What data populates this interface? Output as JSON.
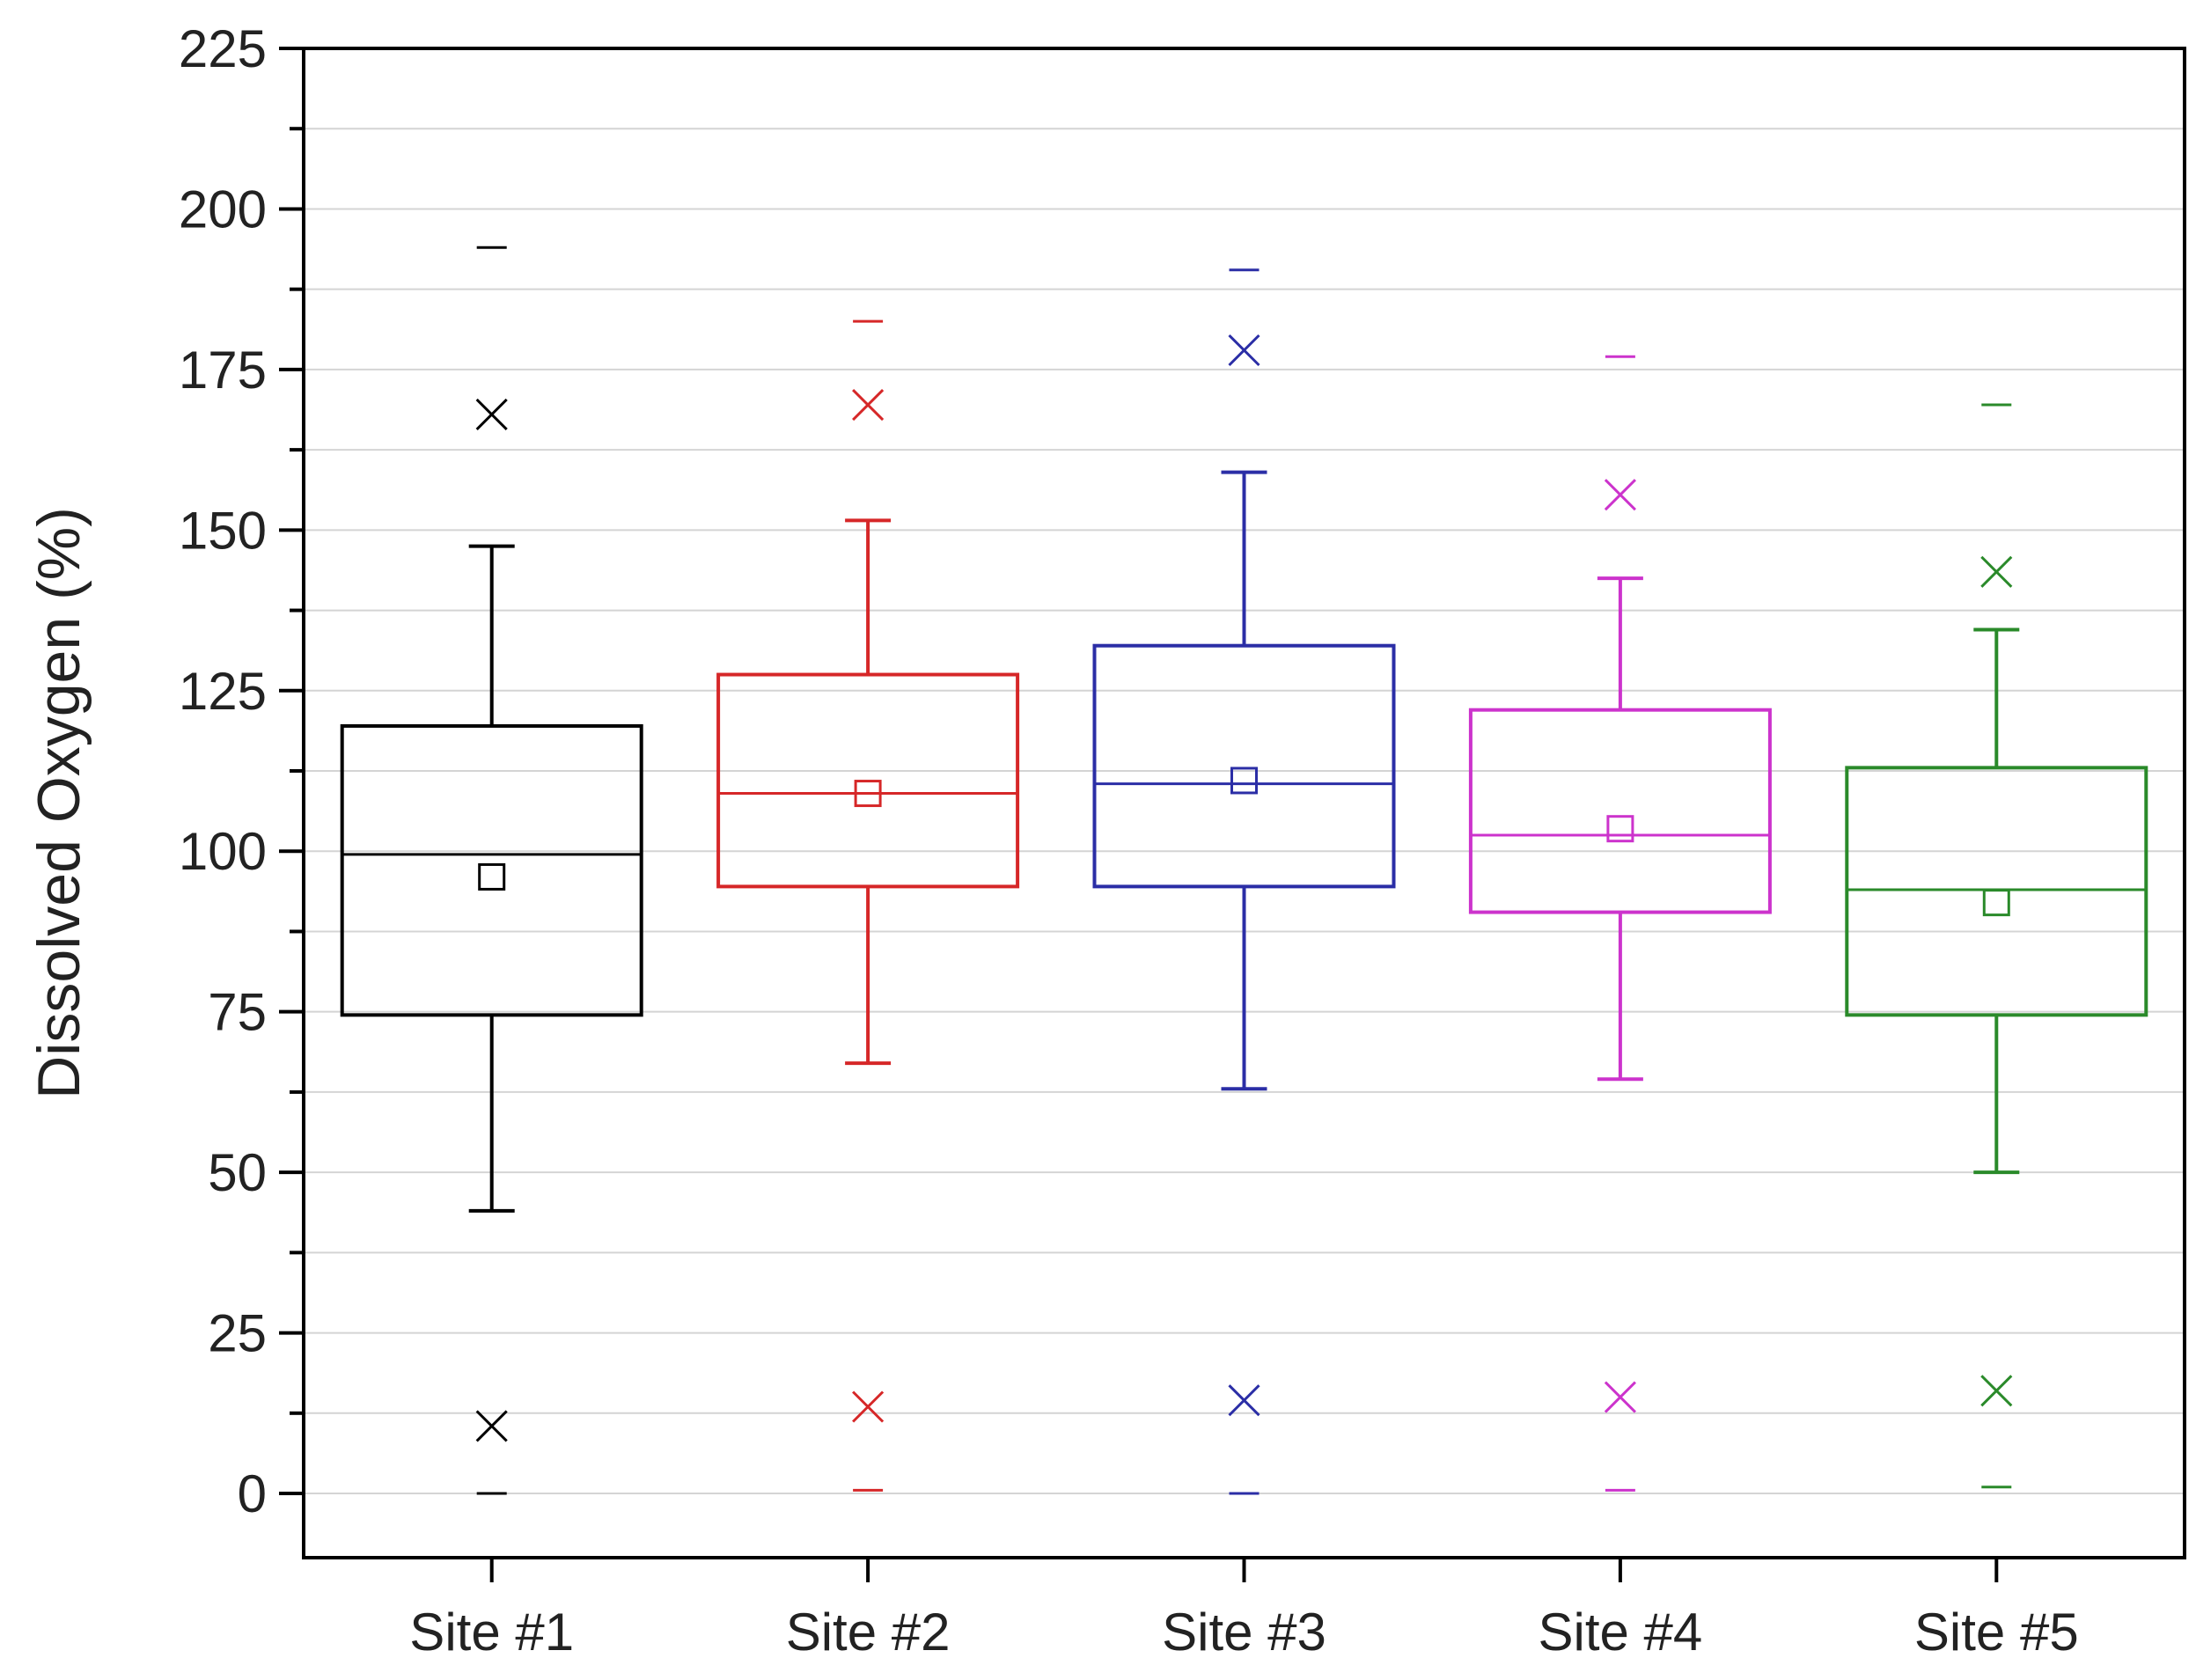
{
  "chart_data": {
    "type": "box",
    "title": "",
    "xlabel": "",
    "ylabel": "Dissolved Oxygen (%)",
    "ylim": [
      -10,
      225
    ],
    "yticks": [
      0,
      25,
      50,
      75,
      100,
      125,
      150,
      175,
      200,
      225
    ],
    "ytick_labels": [
      "0",
      "25",
      "50",
      "75",
      "100",
      "125",
      "150",
      "175",
      "200",
      "225"
    ],
    "grid": true,
    "legend": "none",
    "categories": [
      "Site #1",
      "Site #2",
      "Site #3",
      "Site #4",
      "Site #5"
    ],
    "series": [
      {
        "name": "Site #1",
        "color": "#000000",
        "whisker_low": 44,
        "q1": 74.5,
        "median": 99.5,
        "q3": 119.5,
        "whisker_high": 147.5,
        "mean": 96,
        "p1": 10.5,
        "p99": 168,
        "min": 0,
        "max": 194
      },
      {
        "name": "Site #2",
        "color": "#d62728",
        "whisker_low": 67,
        "q1": 94.5,
        "median": 109,
        "q3": 127.5,
        "whisker_high": 151.5,
        "mean": 109,
        "p1": 13.5,
        "p99": 169.5,
        "min": 0.5,
        "max": 182.5
      },
      {
        "name": "Site #3",
        "color": "#2b2ea6",
        "whisker_low": 63,
        "q1": 94.5,
        "median": 110.5,
        "q3": 132,
        "whisker_high": 159,
        "mean": 111,
        "p1": 14.5,
        "p99": 178,
        "min": 0,
        "max": 190.5
      },
      {
        "name": "Site #4",
        "color": "#cc33cc",
        "whisker_low": 64.5,
        "q1": 90.5,
        "median": 102.5,
        "q3": 122,
        "whisker_high": 142.5,
        "mean": 103.5,
        "p1": 15,
        "p99": 155.5,
        "min": 0.5,
        "max": 177
      },
      {
        "name": "Site #5",
        "color": "#2a8a2a",
        "whisker_low": 50,
        "q1": 74.5,
        "median": 94,
        "q3": 113,
        "whisker_high": 134.5,
        "mean": 92,
        "p1": 16,
        "p99": 143.5,
        "min": 1,
        "max": 169.5
      }
    ]
  }
}
